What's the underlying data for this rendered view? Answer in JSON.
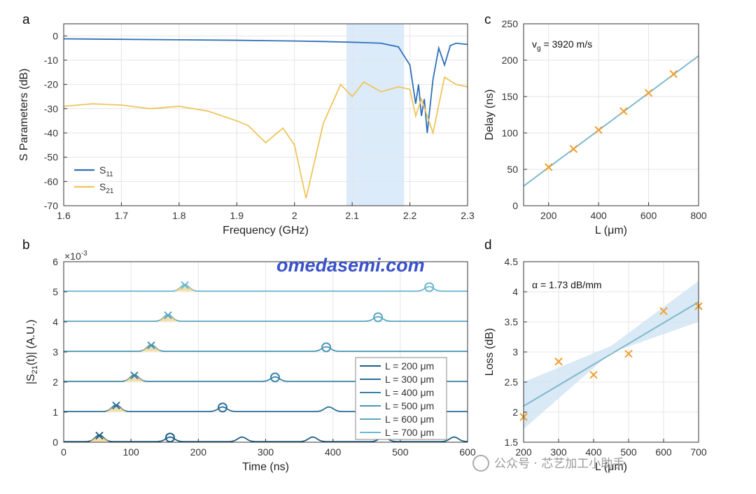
{
  "chart_data": [
    {
      "panel": "a",
      "type": "line",
      "xlabel": "Frequency (GHz)",
      "ylabel": "S Parameters (dB)",
      "xlim": [
        1.6,
        2.3
      ],
      "ylim": [
        -70,
        5
      ],
      "xticks": [
        "1.6",
        "1.7",
        "1.8",
        "1.9",
        "2",
        "2.1",
        "2.2",
        "2.3"
      ],
      "yticks": [
        "0",
        "-10",
        "-20",
        "-30",
        "-40",
        "-50",
        "-60",
        "-70"
      ],
      "grid": true,
      "highlight_band": [
        2.09,
        2.19
      ],
      "legend": [
        "S11",
        "S21"
      ],
      "series": [
        {
          "name": "S11",
          "color": "#2f6fba",
          "x": [
            1.6,
            1.7,
            1.8,
            1.9,
            2.0,
            2.05,
            2.1,
            2.15,
            2.18,
            2.2,
            2.21,
            2.215,
            2.22,
            2.225,
            2.23,
            2.24,
            2.25,
            2.26,
            2.27,
            2.28,
            2.3
          ],
          "y": [
            -1.2,
            -1.4,
            -1.6,
            -1.8,
            -2.1,
            -2.3,
            -2.6,
            -3.0,
            -4.5,
            -12,
            -28,
            -20,
            -33,
            -26,
            -40,
            -18,
            -5,
            -12,
            -4,
            -3,
            -3.5
          ]
        },
        {
          "name": "S21",
          "color": "#efc55c",
          "x": [
            1.6,
            1.65,
            1.7,
            1.75,
            1.8,
            1.85,
            1.9,
            1.92,
            1.95,
            1.98,
            2.0,
            2.02,
            2.05,
            2.08,
            2.1,
            2.12,
            2.15,
            2.18,
            2.2,
            2.21,
            2.22,
            2.24,
            2.26,
            2.28,
            2.3
          ],
          "y": [
            -29,
            -28,
            -28.5,
            -30,
            -29,
            -31,
            -35,
            -37,
            -44,
            -38,
            -45,
            -67,
            -36,
            -20,
            -25,
            -19,
            -23,
            -21,
            -22,
            -33,
            -26,
            -40,
            -17,
            -20,
            -21
          ]
        }
      ]
    },
    {
      "panel": "b",
      "type": "line",
      "xlabel": "Time (ns)",
      "ylabel": "|S21(t)| (A.U.)",
      "exponent": "×10-3",
      "xlim": [
        0,
        600
      ],
      "ylim": [
        0,
        6
      ],
      "xticks": [
        "0",
        "100",
        "200",
        "300",
        "400",
        "500",
        "600"
      ],
      "yticks": [
        "0",
        "1",
        "2",
        "3",
        "4",
        "5",
        "6"
      ],
      "grid": true,
      "legend": [
        "L = 200 μm",
        "L = 300 μm",
        "L = 400 μm",
        "L = 500 μm",
        "L = 600 μm",
        "L = 700 μm"
      ],
      "series": [
        {
          "name": "L = 200 μm",
          "offset": 0,
          "color": "#1f5f85",
          "cross": 53,
          "circle": 158,
          "bumps": [
            265,
            370,
            475,
            580
          ]
        },
        {
          "name": "L = 300 μm",
          "offset": 1,
          "color": "#2b7097",
          "cross": 78,
          "circle": 236,
          "bumps": [
            394
          ]
        },
        {
          "name": "L = 400 μm",
          "offset": 2,
          "color": "#3882a6",
          "cross": 105,
          "circle": 314,
          "bumps": []
        },
        {
          "name": "L = 500 μm",
          "offset": 3,
          "color": "#4a95b6",
          "cross": 130,
          "circle": 390,
          "bumps": []
        },
        {
          "name": "L = 600 μm",
          "offset": 4,
          "color": "#5ba7c4",
          "cross": 155,
          "circle": 467,
          "bumps": []
        },
        {
          "name": "L = 700 μm",
          "offset": 5,
          "color": "#6db8d2",
          "cross": 180,
          "circle": 543,
          "bumps": []
        }
      ],
      "peak_height": 0.22
    },
    {
      "panel": "c",
      "type": "scatter",
      "xlabel": "L (μm)",
      "ylabel": "Delay (ns)",
      "xlim": [
        100,
        800
      ],
      "ylim": [
        0,
        250
      ],
      "xticks": [
        "200",
        "400",
        "600",
        "800"
      ],
      "yticks": [
        "0",
        "50",
        "100",
        "150",
        "200",
        "250"
      ],
      "grid": true,
      "annotation": "vg = 3920 m/s",
      "x": [
        200,
        300,
        400,
        500,
        600,
        700
      ],
      "y": [
        53,
        78,
        104,
        130,
        155,
        181
      ],
      "fit": {
        "x": [
          100,
          800
        ],
        "y": [
          27,
          206
        ]
      }
    },
    {
      "panel": "d",
      "type": "scatter",
      "xlabel": "L (μm)",
      "ylabel": "Loss (dB)",
      "xlim": [
        200,
        700
      ],
      "ylim": [
        1.5,
        4.5
      ],
      "xticks": [
        "200",
        "300",
        "400",
        "500",
        "600",
        "700"
      ],
      "yticks": [
        "1.5",
        "2",
        "2.5",
        "3",
        "3.5",
        "4",
        "4.5"
      ],
      "grid": true,
      "annotation": "α = 1.73 dB/mm",
      "x": [
        200,
        300,
        400,
        500,
        600,
        700
      ],
      "y": [
        1.92,
        2.84,
        2.62,
        2.97,
        3.68,
        3.76
      ],
      "fit": {
        "x": [
          200,
          700
        ],
        "y": [
          2.1,
          3.83
        ]
      },
      "ci_upper": [
        2.5,
        3.1,
        4.18
      ],
      "ci_lower": [
        1.72,
        2.99,
        3.5
      ]
    }
  ],
  "labels": {
    "a": "a",
    "b": "b",
    "c": "c",
    "d": "d"
  },
  "watermark": {
    "main": "omedasemi.com",
    "sub": "公众号 · 芯艺加工小助手"
  },
  "colors": {
    "s11": "#2f6fba",
    "s21": "#efc55c",
    "fit": "#7fb9cc",
    "marker": "#f0a030",
    "band": "#dcebfa",
    "ci": "#cfe4f3"
  }
}
